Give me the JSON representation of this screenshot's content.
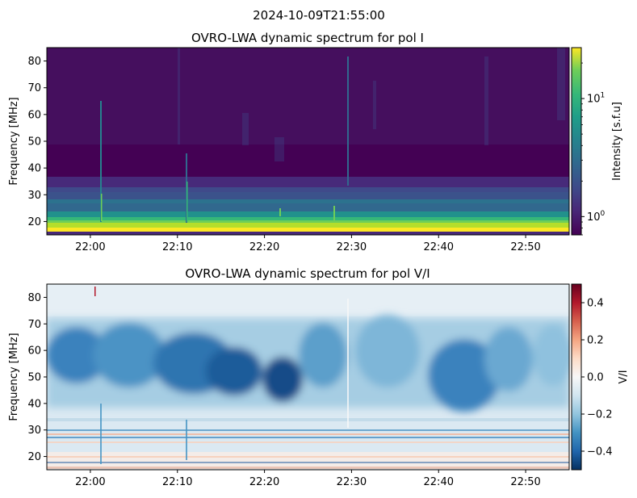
{
  "figure": {
    "suptitle": "2024-10-09T21:55:00"
  },
  "chart_data": [
    {
      "type": "heatmap",
      "title": "OVRO-LWA dynamic spectrum for pol I",
      "xlabel": "",
      "ylabel": "Frequency [MHz]",
      "xlim": [
        "21:55",
        "22:55"
      ],
      "ylim": [
        15,
        85
      ],
      "x_ticks": [
        "22:00",
        "22:10",
        "22:20",
        "22:30",
        "22:40",
        "22:50"
      ],
      "y_ticks": [
        20,
        30,
        40,
        50,
        60,
        70,
        80
      ],
      "colormap": "viridis",
      "colorbar": {
        "label": "Intensity [s.f.u]",
        "scale": "log",
        "range": [
          0.7,
          27
        ],
        "ticks": [
          {
            "value": 1,
            "label": "10",
            "exp": "0"
          },
          {
            "value": 10,
            "label": "10",
            "exp": "1"
          }
        ]
      },
      "features": {
        "bright_band_mhz": [
          15,
          22
        ],
        "moderate_band_mhz": [
          22,
          36
        ],
        "bursts": [
          {
            "time": "22:01",
            "freq_max_mhz": 65
          },
          {
            "time": "22:10",
            "freq_max_mhz": 55
          },
          {
            "time": "22:21",
            "freq_max_mhz": 25
          },
          {
            "time": "22:28",
            "freq_max_mhz": 30
          },
          {
            "time": "22:30",
            "freq_max_mhz": 82
          }
        ]
      }
    },
    {
      "type": "heatmap",
      "title": "OVRO-LWA dynamic spectrum for pol V/I",
      "xlabel": "",
      "ylabel": "Frequency [MHz]",
      "xlim": [
        "21:55",
        "22:55"
      ],
      "ylim": [
        15,
        85
      ],
      "x_ticks": [
        "22:00",
        "22:10",
        "22:20",
        "22:30",
        "22:40",
        "22:50"
      ],
      "y_ticks": [
        20,
        30,
        40,
        50,
        60,
        70,
        80
      ],
      "colormap": "RdBu_r",
      "colorbar": {
        "label": "V/I",
        "scale": "linear",
        "range": [
          -0.5,
          0.5
        ],
        "ticks": [
          {
            "value": 0.4,
            "label": "0.4"
          },
          {
            "value": 0.2,
            "label": "0.2"
          },
          {
            "value": 0.0,
            "label": "0.0"
          },
          {
            "value": -0.2,
            "label": "−0.2"
          },
          {
            "value": -0.4,
            "label": "−0.4"
          }
        ]
      },
      "features": {
        "negative_region_mhz": [
          38,
          75
        ],
        "peak_negative_value": -0.45,
        "peak_negative_time": "22:21"
      }
    }
  ]
}
